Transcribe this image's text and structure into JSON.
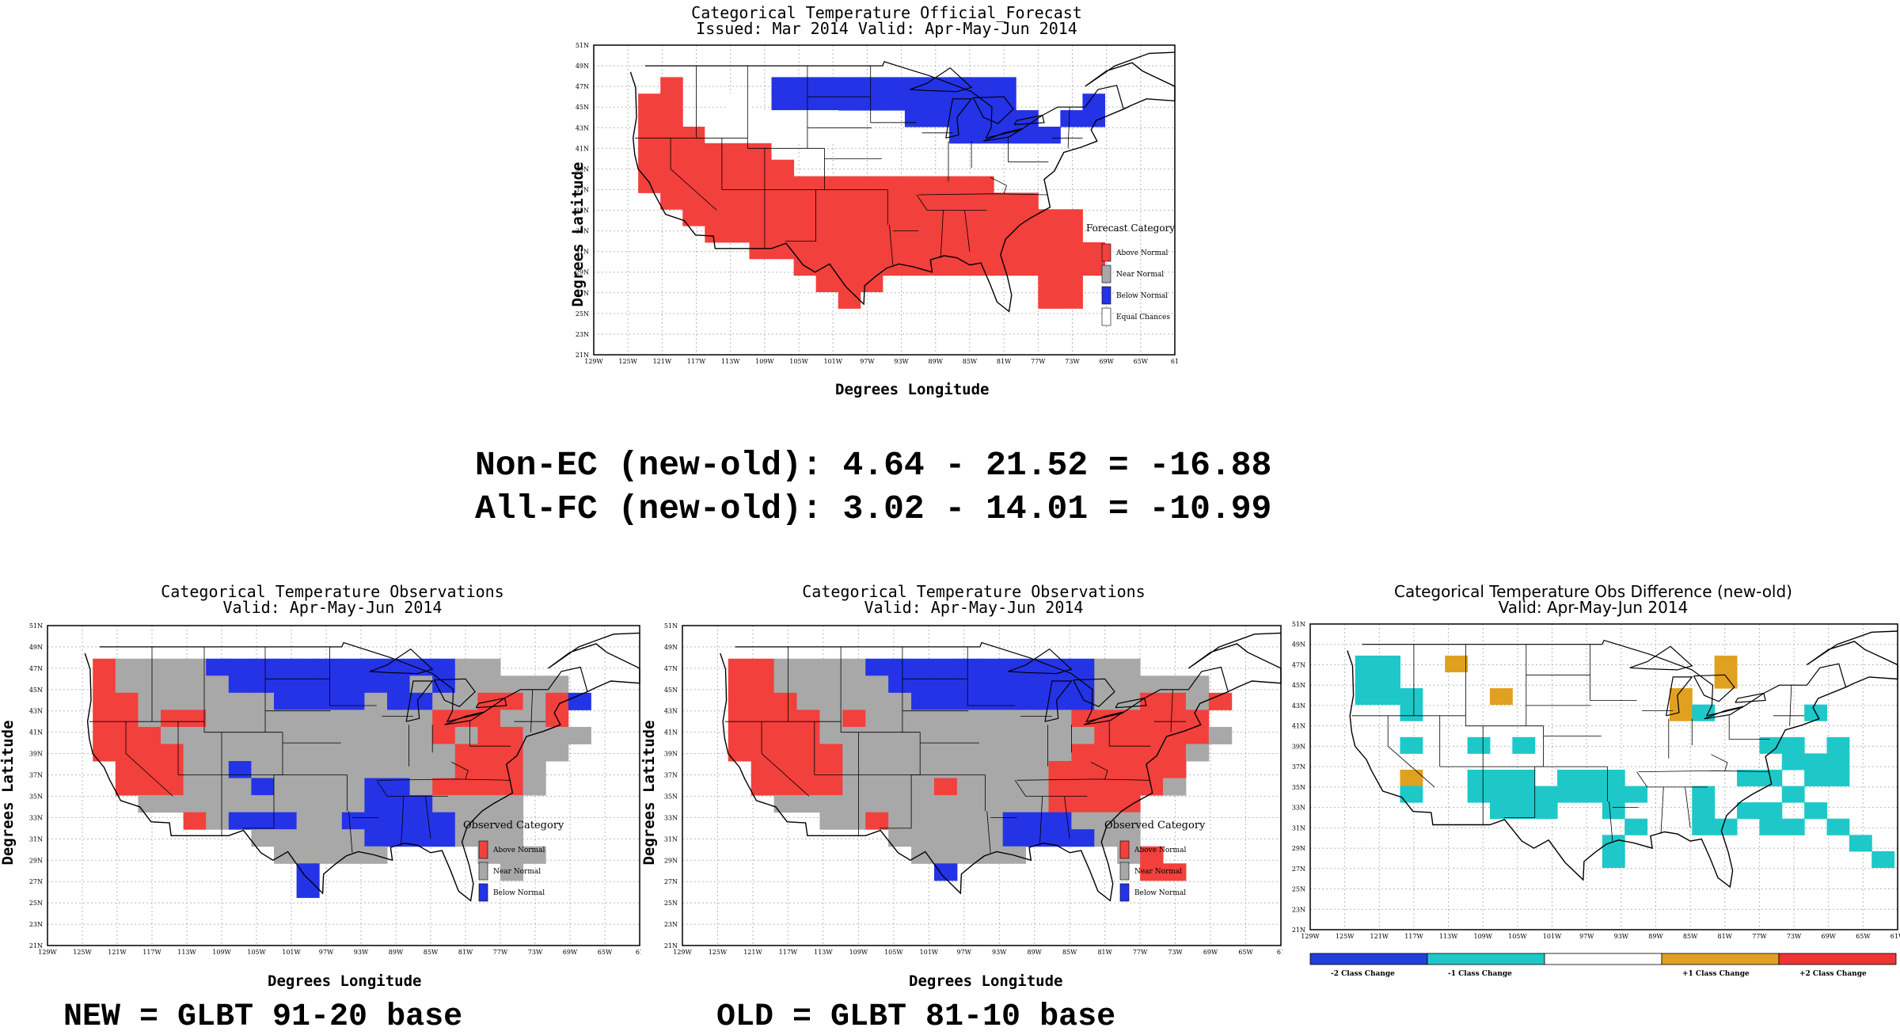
{
  "top": {
    "title": "Categorical Temperature Official_Forecast",
    "subtitle": "Issued: Mar 2014 Valid: Apr-May-Jun 2014",
    "ylabel": "Degrees Latitude",
    "xlabel": "Degrees Longitude",
    "legend_title": "Forecast Category",
    "legend": [
      "Above Normal",
      "Near Normal",
      "Below Normal",
      "Equal Chances"
    ]
  },
  "stats": {
    "line1": "Non-EC (new-old): 4.64 - 21.52 = -16.88",
    "line2": "All-FC (new-old): 3.02 - 14.01 = -10.99"
  },
  "obs_new": {
    "title": "Categorical Temperature Observations",
    "subtitle": "Valid: Apr-May-Jun 2014",
    "ylabel": "Degrees Latitude",
    "xlabel": "Degrees Longitude",
    "legend_title": "Observed Category",
    "legend": [
      "Above Normal",
      "Near Normal",
      "Below Normal"
    ],
    "caption": "NEW = GLBT 91-20 base"
  },
  "obs_old": {
    "title": "Categorical Temperature Observations",
    "subtitle": "Valid: Apr-May-Jun 2014",
    "ylabel": "Degrees Latitude",
    "xlabel": "Degrees Longitude",
    "legend_title": "Observed Category",
    "legend": [
      "Above Normal",
      "Near Normal",
      "Below Normal"
    ],
    "caption": "OLD = GLBT 81-10 base"
  },
  "diff": {
    "title": "Categorical Temperature Obs Difference (new-old)",
    "subtitle": "Valid: Apr-May-Jun 2014",
    "colorbar": [
      "-2 Class Change",
      "-1 Class Change",
      "+1 Class Change",
      "+2 Class Change"
    ]
  },
  "axes": {
    "lat_ticks": [
      "51N",
      "49N",
      "47N",
      "45N",
      "43N",
      "41N",
      "39N",
      "37N",
      "35N",
      "33N",
      "31N",
      "29N",
      "27N",
      "25N",
      "23N",
      "21N"
    ],
    "lon_ticks": [
      "129W",
      "125W",
      "121W",
      "117W",
      "113W",
      "109W",
      "105W",
      "101W",
      "97W",
      "93W",
      "89W",
      "85W",
      "81W",
      "77W",
      "73W",
      "69W",
      "65W",
      "61"
    ],
    "lon_ticks_diff": [
      "129W",
      "125W",
      "121W",
      "117W",
      "113W",
      "109W",
      "105W",
      "101W",
      "97W",
      "93W",
      "89W",
      "85W",
      "81W",
      "77W",
      "73W",
      "69W",
      "65W",
      "61W"
    ]
  },
  "colors": {
    "above": "#f2403d",
    "near": "#a8a8a8",
    "below": "#2433e6",
    "ec": "#ffffff",
    "minus2": "#2040d8",
    "minus1": "#1ec8c8",
    "plus1": "#e0a020",
    "plus2": "#ee3333"
  },
  "map_data": {
    "forecast_grid": [
      "..........................",
      "...A....BBBBBBBBBBB.......",
      "..AA..E.BBBBBBBBBBB...B...",
      "..AA..EEEEE...BBBBBB.BB...",
      "..AAAEEEEEE.....BBBBB.....",
      "..AAAAAAE.................",
      "..AAAAAAA.................",
      "..AAAAAAAAAAAAAAAA........",
      "...AAAAAAAAAAAAAAAAA......",
      "....AAAAAAAAAAAAAAAAAA....",
      ".....AAAAAAAAAAAAAAAAA....",
      ".......AAAAAAAAAAAAAAAA...",
      ".........AAAAAAAAAAAAAA...",
      "..........AAA.......AA....",
      "...........A........AA....",
      ".........................."
    ],
    "obs_new_grid": [
      "..........................",
      "..ANNNNBBBBBBBBBBBNN......",
      "..ANNNNNBBBBBBBBNBNNNNN...",
      "..AANNNNNNBBBBNBBNNAANAB..",
      "..AANAANNNNNNNNNNAAANNA...",
      "..AAANNNNNNNNNNNNANAANNN..",
      "..AAAANNNNNNNNNNNNAAANN...",
      "...AAANNBNNNNNNNNNAAAN....",
      "...AAANNNBNNNNBBNAAAAN....",
      "....NNNNNNNNNNBBBNNNN.....",
      "......ANBBBNNBBBBBNNN.....",
      ".........NNNNNBBBBNNN.....",
      "..........NNNNN....NNN....",
      "...........B........N.....",
      "...........B..............",
      ".........................."
    ],
    "obs_old_grid": [
      "..........................",
      "..AANNNNBBBBBBBBBBNN......",
      "..AANNNNNBBBBBBBBBNNNNN...",
      "..AAANNNNNBBBBBBBBNNAANA..",
      "..AAAANANNNNNNNNNAAAAAA...",
      "..AAAANNNNNNNNNNNNAAAAAN..",
      "..AAAAANNNNNNNNNNAAAAAN...",
      "...AAAANNNNNNNNNAAAAAA....",
      "...AAAANNNNANNNNAAAAAN....",
      "....NNNNNNNNNNNNAAAA......",
      "......NNANNNNNBBBNNN......",
      ".........NNNNNBBBBNN......",
      "..........NNNNN....NA.....",
      "...........B........AA....",
      "..........................",
      ".........................."
    ],
    "diff_grid": [
      "..........................",
      "..11..P...........P.......",
      "..11..............P.......",
      "..111...P.......P.........",
      "....1...........P1....1...",
      "...........................",
      "....1..1.1..........11.1..",
      ".....................111..",
      "....P..111.111.....11.11..",
      "....1..11111111..1...1....",
      "........111..1...1.11.1...",
      "..............1..11.11.1..",
      ".............1..........1.",
      ".............1...........1",
      "..........................",
      ".........................."
    ]
  }
}
